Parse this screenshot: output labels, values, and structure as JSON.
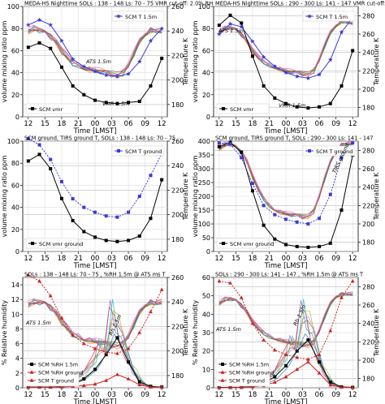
{
  "panels": [
    {
      "title": "MEDA-HS Nighttime   SOLs : 138 - 148 Ls: 70 - 75  VMR cut-off: 2.0% RH",
      "xlabel": "Time [LMST]",
      "ylabel_left": "volume mixing ratio ppm",
      "ylabel_right": "Temperature K",
      "left_ticks": [
        0,
        20,
        40,
        60,
        80,
        100
      ],
      "right_ticks": [
        180,
        200,
        220,
        240,
        260
      ],
      "right_range": [
        170,
        260
      ],
      "annotations": [
        "ATS 1.5m",
        "VMR 1.5m"
      ]
    },
    {
      "title": "MEDA-HS Nighttime   SOLs : 290 - 300 Ls: 141 - 147  VMR cut-off: 2.0% RH",
      "xlabel": "Time [LMST]",
      "ylabel_left": "volume mixing ratio ppm",
      "ylabel_right": "Temperature K",
      "left_ticks": [
        0,
        20,
        40,
        60,
        80,
        100
      ],
      "right_ticks": [
        180,
        200,
        220,
        240,
        260,
        280
      ],
      "right_range": [
        170,
        290
      ],
      "annotations": [
        "ATS 1.5m",
        "VMR 1.5m"
      ]
    },
    {
      "title": "SCM ground, TIRS ground T,  SOLs : 138 - 148 Ls: 70 - 75",
      "xlabel": "Time [LMST]",
      "ylabel_left": "volume mixing ratio ppm",
      "ylabel_right": "Temperature K",
      "left_ticks": [
        0,
        20,
        40,
        60,
        80,
        100
      ],
      "right_ticks": [
        180,
        200,
        220,
        240,
        260
      ],
      "right_range": [
        170,
        260
      ],
      "annotations": []
    },
    {
      "title": "SCM ground, TIRS ground T,  SOLs : 290 - 300 Ls: 141 - 147",
      "xlabel": "Time [LMST]",
      "ylabel_left": "volume mixing ratio ppm",
      "ylabel_right": "Temperature K",
      "left_ticks": [
        0,
        50,
        100,
        150,
        200,
        250,
        300,
        350,
        400
      ],
      "right_ticks": [
        180,
        200,
        220,
        240,
        260,
        280
      ],
      "right_range": [
        170,
        290
      ],
      "annotations": [
        "TIRS ground"
      ]
    },
    {
      "title": "SOLs : 138 - 148  Ls: 70 - 75 ,  %RH 1.5m @ ATS ms T",
      "xlabel": "Time [LMST]",
      "ylabel_left": "% Relative humidity",
      "ylabel_right": "Temperature K",
      "left_ticks": [
        0,
        2,
        4,
        6,
        8,
        10,
        12,
        14
      ],
      "right_ticks": [
        180,
        200,
        220,
        240,
        260
      ],
      "right_range": [
        170,
        260
      ],
      "annotations": [
        "ATS 1.5m",
        "Rh 1.5m"
      ]
    },
    {
      "title": "SOLs : 290 - 300  Ls: 141 - 147 ,  %RH 1.5m @ ATS ms T",
      "xlabel": "Time [LMST]",
      "ylabel_left": "% Relative humidity",
      "ylabel_right": "Temperature K",
      "left_ticks": [
        0,
        10,
        20,
        30,
        40,
        50,
        60
      ],
      "right_ticks": [
        180,
        200,
        220,
        240,
        260,
        280
      ],
      "right_range": [
        170,
        290
      ],
      "annotations": [
        "ATS 1.5m",
        "Rh 1.5m"
      ]
    }
  ],
  "chart_data": [
    {
      "type": "line",
      "x_ticks": [
        "12",
        "15",
        "18",
        "21",
        "00",
        "03",
        "06",
        "09",
        "12"
      ],
      "x": [
        12,
        14,
        16,
        18,
        20,
        22,
        24,
        26,
        28,
        30,
        32,
        34,
        36
      ],
      "ylim": [
        0,
        100
      ],
      "legend": "lower-left (SCM vmr) / top-right (SCM T 1.5m)",
      "grid": true,
      "series": [
        {
          "name": "SCM vmr",
          "axis": "left",
          "color": "#000000",
          "marker": "square",
          "values": [
            63,
            67,
            62,
            45,
            28,
            20,
            15,
            13,
            12,
            13,
            14,
            28,
            53
          ]
        },
        {
          "name": "SCM T 1.5m",
          "axis": "right",
          "color": "#3a3ad8",
          "marker": "star",
          "values": [
            245,
            249,
            245,
            232,
            217,
            211,
            207,
            204,
            203,
            205,
            215,
            232,
            242
          ]
        }
      ]
    },
    {
      "type": "line",
      "x_ticks": [
        "12",
        "15",
        "18",
        "21",
        "00",
        "03",
        "06",
        "09",
        "12"
      ],
      "x": [
        12,
        14,
        16,
        18,
        20,
        22,
        24,
        26,
        28,
        30,
        32,
        34,
        36
      ],
      "ylim": [
        0,
        100
      ],
      "legend": "lower-left (SCM vmr) / top-right (SCM T 1.5m)",
      "grid": true,
      "series": [
        {
          "name": "SCM vmr",
          "axis": "left",
          "color": "#000000",
          "marker": "square",
          "values": [
            83,
            92,
            85,
            55,
            28,
            17,
            12,
            9,
            8,
            9,
            12,
            28,
            60
          ]
        },
        {
          "name": "SCM T 1.5m",
          "axis": "right",
          "color": "#3a3ad8",
          "marker": "star",
          "values": [
            260,
            271,
            268,
            252,
            235,
            225,
            218,
            214,
            212,
            216,
            232,
            262,
            278
          ]
        }
      ]
    },
    {
      "type": "line",
      "x_ticks": [
        "12",
        "15",
        "18",
        "21",
        "00",
        "03",
        "06",
        "09",
        "12"
      ],
      "x": [
        12,
        14,
        16,
        18,
        20,
        22,
        24,
        26,
        28,
        30,
        32,
        34,
        36
      ],
      "ylim": [
        0,
        100
      ],
      "legend": "lower-left (SCM vmr ground) / top-right (SCM T ground)",
      "grid": true,
      "series": [
        {
          "name": "SCM vmr ground",
          "axis": "left",
          "color": "#000000",
          "marker": "square",
          "values": [
            82,
            88,
            75,
            48,
            28,
            18,
            13,
            10,
            9,
            10,
            14,
            30,
            65
          ]
        },
        {
          "name": "SCM T ground",
          "axis": "right",
          "color": "#3a3ad8",
          "marker": "square",
          "values": [
            262,
            257,
            245,
            227,
            213,
            206,
            202,
            199,
            198,
            202,
            215,
            232,
            250
          ]
        }
      ]
    },
    {
      "type": "line",
      "x_ticks": [
        "12",
        "15",
        "18",
        "21",
        "00",
        "03",
        "06",
        "09",
        "12"
      ],
      "x": [
        12,
        14,
        16,
        18,
        20,
        22,
        24,
        26,
        28,
        30,
        32,
        34,
        36
      ],
      "ylim": [
        0,
        400
      ],
      "legend": "lower-left (SCM vmr ground) / top-right (SCM T ground)",
      "grid": true,
      "series": [
        {
          "name": "SCM vmr ground",
          "axis": "left",
          "color": "#000000",
          "marker": "square",
          "values": [
            380,
            395,
            360,
            220,
            95,
            45,
            25,
            18,
            15,
            18,
            30,
            150,
            350
          ]
        },
        {
          "name": "SCM T ground",
          "axis": "right",
          "color": "#3a3ad8",
          "marker": "square",
          "values": [
            288,
            287,
            272,
            244,
            220,
            210,
            205,
            202,
            200,
            206,
            232,
            272,
            288
          ]
        }
      ]
    },
    {
      "type": "line",
      "x_ticks": [
        "12",
        "15",
        "18",
        "21",
        "00",
        "03",
        "06",
        "09",
        "12"
      ],
      "x": [
        12,
        14,
        16,
        18,
        20,
        22,
        24,
        26,
        28,
        30,
        32,
        34,
        36
      ],
      "ylim": [
        0,
        15
      ],
      "legend": "lower-left",
      "grid": true,
      "series": [
        {
          "name": "SCM %RH 1.5m",
          "axis": "left",
          "color": "#000000",
          "marker": "square",
          "values": [
            0.1,
            0.1,
            0.1,
            0.2,
            0.5,
            1.2,
            2.5,
            4.5,
            6.8,
            3.5,
            0.8,
            0.2,
            0.1
          ]
        },
        {
          "name": "SCM %RH ground",
          "axis": "left",
          "color": "#cc2222",
          "marker": "triangle",
          "values": [
            0.1,
            0.1,
            0.1,
            0.1,
            0.2,
            0.3,
            0.5,
            1.0,
            1.8,
            1.2,
            0.4,
            0.1,
            0.1
          ]
        },
        {
          "name": "SCM T ground",
          "axis": "right",
          "color": "#cc2222",
          "marker": "triangle",
          "values": [
            262,
            257,
            245,
            227,
            213,
            206,
            202,
            199,
            198,
            202,
            215,
            232,
            250
          ]
        }
      ]
    },
    {
      "type": "line",
      "x_ticks": [
        "12",
        "15",
        "18",
        "21",
        "00",
        "03",
        "06",
        "09",
        "12"
      ],
      "x": [
        12,
        14,
        16,
        18,
        20,
        22,
        24,
        26,
        28,
        30,
        32,
        34,
        36
      ],
      "ylim": [
        0,
        60
      ],
      "legend": "lower-left",
      "grid": true,
      "series": [
        {
          "name": "SCM %RH 1.5m",
          "axis": "left",
          "color": "#000000",
          "marker": "square",
          "values": [
            0.2,
            0.2,
            0.3,
            0.8,
            2.5,
            6,
            12,
            20,
            26,
            14,
            3,
            0.5,
            0.2
          ]
        },
        {
          "name": "SCM %RH ground",
          "axis": "left",
          "color": "#cc2222",
          "marker": "triangle",
          "values": [
            0.1,
            0.1,
            0.2,
            0.5,
            1.2,
            3,
            6,
            10,
            14,
            8,
            1.5,
            0.3,
            0.1
          ]
        },
        {
          "name": "SCM T ground",
          "axis": "right",
          "color": "#cc2222",
          "marker": "triangle",
          "values": [
            286,
            284,
            268,
            240,
            222,
            211,
            206,
            203,
            201,
            206,
            232,
            268,
            286
          ]
        }
      ]
    }
  ],
  "measured": [
    {
      "name": "ATS 1.5m",
      "axis": "right",
      "x": [
        12,
        13,
        14,
        15,
        16,
        17,
        18,
        19,
        20,
        21,
        22,
        23,
        24,
        25,
        26,
        27,
        28,
        29,
        30,
        31,
        32,
        33,
        34,
        35,
        36
      ],
      "values": [
        240,
        242,
        241,
        239,
        236,
        231,
        224,
        219,
        214,
        212,
        210,
        209,
        208,
        207,
        206,
        205,
        204,
        206,
        212,
        222,
        232,
        238,
        241,
        240,
        240
      ]
    },
    {
      "name": "ATS 1.5m",
      "axis": "right",
      "x": [
        12,
        13,
        14,
        15,
        16,
        17,
        18,
        19,
        20,
        21,
        22,
        23,
        24,
        25,
        26,
        27,
        28,
        29,
        30,
        31,
        32,
        33,
        34,
        35,
        36
      ],
      "values": [
        262,
        266,
        267,
        265,
        260,
        252,
        242,
        235,
        230,
        226,
        224,
        222,
        220,
        219,
        218,
        217,
        216,
        220,
        232,
        248,
        262,
        270,
        274,
        273,
        272
      ]
    },
    {
      "name": "",
      "axis": "right",
      "x": [],
      "values": []
    },
    {
      "name": "TIRS ground",
      "axis": "right",
      "x": [
        12,
        13,
        14,
        15,
        16,
        17,
        18,
        19,
        20,
        21,
        22,
        23,
        24,
        25,
        26,
        27,
        28,
        29,
        30,
        31,
        32,
        33,
        34,
        35,
        36
      ],
      "values": [
        282,
        286,
        287,
        284,
        278,
        268,
        252,
        238,
        228,
        220,
        216,
        213,
        211,
        210,
        209,
        208,
        208,
        214,
        230,
        250,
        268,
        280,
        286,
        287,
        288
      ]
    },
    {
      "name": "ATS 1.5m",
      "axis": "right",
      "x": [
        12,
        13,
        14,
        15,
        16,
        17,
        18,
        19,
        20,
        21,
        22,
        23,
        24,
        25,
        26,
        27,
        28,
        29,
        30,
        31,
        32,
        33,
        34,
        35,
        36
      ],
      "values": [
        238,
        240,
        240,
        239,
        236,
        231,
        224,
        219,
        214,
        212,
        210,
        209,
        208,
        207,
        206,
        205,
        204,
        206,
        212,
        222,
        232,
        238,
        240,
        239,
        240
      ]
    },
    {
      "name": "ATS 1.5m",
      "axis": "right",
      "x": [
        12,
        13,
        14,
        15,
        16,
        17,
        18,
        19,
        20,
        21,
        22,
        23,
        24,
        25,
        26,
        27,
        28,
        29,
        30,
        31,
        32,
        33,
        34,
        35,
        36
      ],
      "values": [
        262,
        266,
        267,
        265,
        260,
        252,
        242,
        235,
        230,
        226,
        224,
        222,
        220,
        219,
        218,
        217,
        216,
        220,
        232,
        248,
        262,
        270,
        272,
        272,
        272
      ]
    }
  ],
  "rh_measured": [
    {
      "x": [
        18,
        20,
        22,
        24,
        25,
        26,
        27,
        28,
        29,
        30,
        31,
        32,
        33,
        34
      ],
      "values": [
        0.3,
        0.8,
        2,
        4,
        6,
        8,
        11,
        9,
        7,
        4.5,
        2.5,
        1.2,
        0.5,
        0.2
      ]
    },
    {
      "x": [
        18,
        20,
        22,
        24,
        25,
        26,
        27,
        28,
        29,
        30,
        31,
        32,
        33,
        34
      ],
      "values": [
        1,
        3,
        8,
        18,
        26,
        34,
        44,
        38,
        30,
        18,
        9,
        4,
        1.5,
        0.5
      ]
    }
  ],
  "colors": {
    "scm_vmr": "#000000",
    "scm_T": "#3a3ad8",
    "scm_ground_T_red": "#cc2222",
    "measured_palette": [
      "#1f77b4",
      "#ff7f0e",
      "#2ca02c",
      "#d62728",
      "#9467bd",
      "#8c564b",
      "#e377c2",
      "#17becf",
      "#bcbd22"
    ]
  }
}
